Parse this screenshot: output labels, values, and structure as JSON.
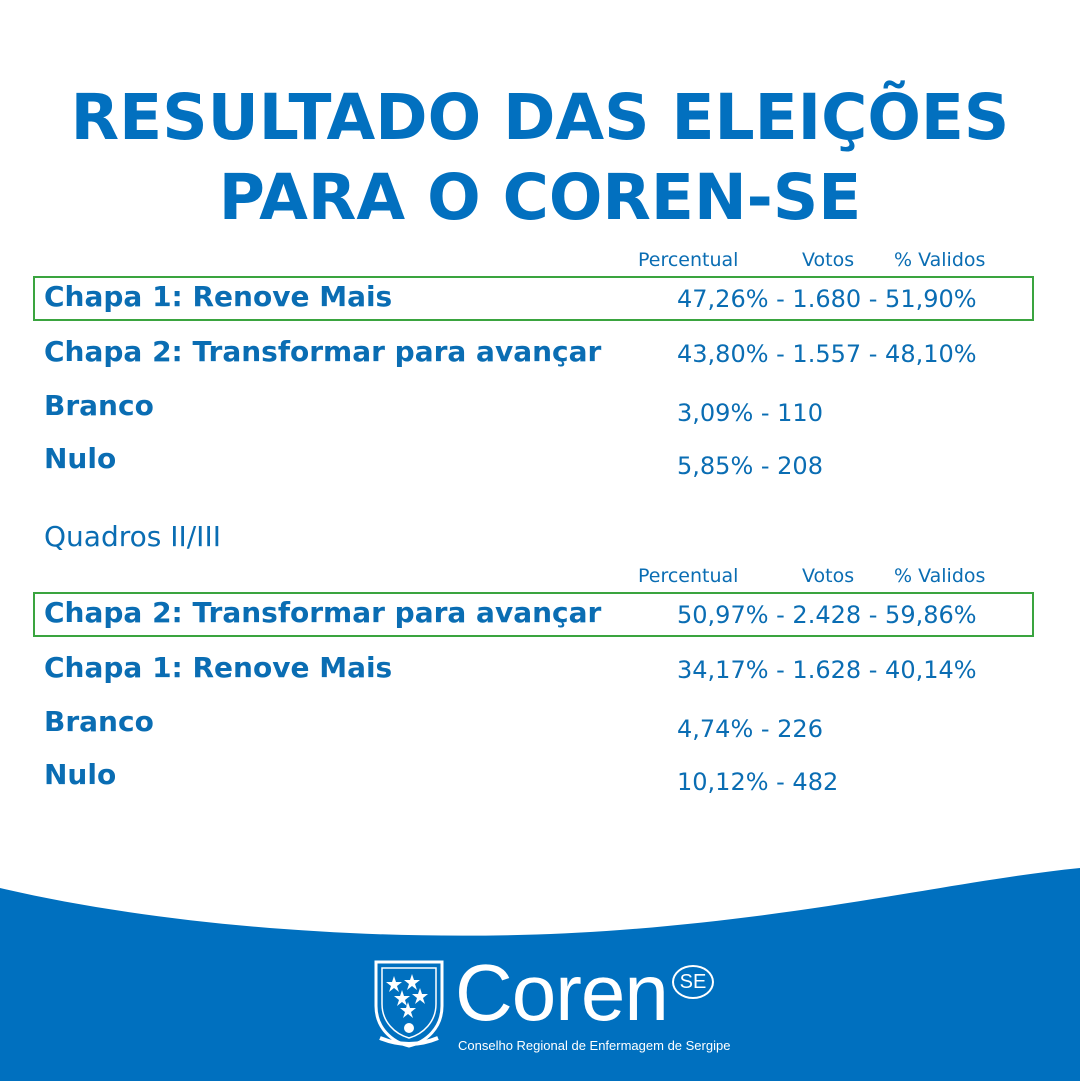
{
  "title": {
    "line1": "RESULTADO DAS ELEIÇÕES",
    "line2": "PARA O COREN-SE"
  },
  "columns": {
    "percentual": "Percentual",
    "votos": "Votos",
    "validos": "% Validos"
  },
  "section1": {
    "rows": [
      {
        "label": "Chapa 1: Renove Mais",
        "value": "47,26% - 1.680 - 51,90%"
      },
      {
        "label": "Chapa 2: Transformar para avançar",
        "value": "43,80% - 1.557 - 48,10%"
      },
      {
        "label": "Branco",
        "value": "3,09% - 110"
      },
      {
        "label": "Nulo",
        "value": "5,85% - 208"
      }
    ]
  },
  "section2": {
    "label": "Quadros II/III",
    "rows": [
      {
        "label": "Chapa 2: Transformar para avançar",
        "value": "50,97% - 2.428 - 59,86%"
      },
      {
        "label": "Chapa 1: Renove Mais",
        "value": "34,17% - 1.628 - 40,14%"
      },
      {
        "label": "Branco",
        "value": "4,74% - 226"
      },
      {
        "label": "Nulo",
        "value": "10,12% - 482"
      }
    ]
  },
  "logo": {
    "name": "Coren",
    "badge": "SE",
    "subtitle": "Conselho Regional de Enfermagem de Sergipe",
    "crest_text": "Conselho Regional de Enfermagem"
  },
  "colors": {
    "primary_blue": "#0070bd",
    "highlight_green": "#3aa43f",
    "footer_blue": "#0070bf"
  }
}
